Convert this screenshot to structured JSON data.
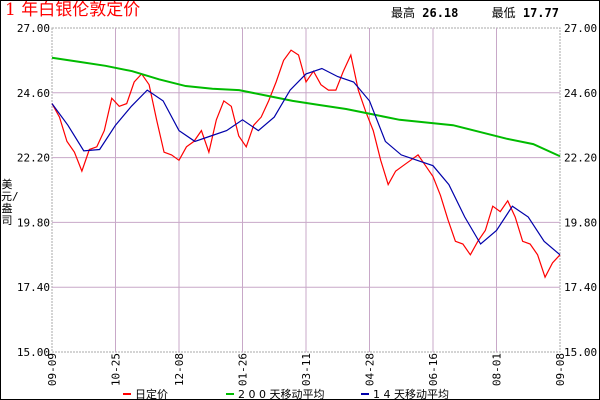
{
  "title": "1 年白银伦敦定价",
  "stats": {
    "high_label": "最高",
    "high": "26.18",
    "low_label": "最低",
    "low": "17.77"
  },
  "chart_data": {
    "type": "line",
    "title": "1 年白银伦敦定价",
    "ylabel": "美元/盎司",
    "ylim": [
      15.0,
      27.0
    ],
    "yticks": [
      "27.00",
      "24.60",
      "22.20",
      "19.80",
      "17.40",
      "15.00"
    ],
    "xticks": [
      "09-09",
      "10-25",
      "12-08",
      "01-26",
      "03-11",
      "04-28",
      "06-16",
      "08-01",
      "09-08"
    ],
    "grid": true,
    "legend_position": "bottom",
    "series": [
      {
        "name": "日定价",
        "color": "#ff0000",
        "values": [
          24.2,
          23.7,
          22.8,
          22.4,
          21.7,
          22.5,
          22.6,
          23.2,
          24.4,
          24.1,
          24.2,
          25.0,
          25.3,
          24.9,
          23.6,
          22.4,
          22.3,
          22.1,
          22.6,
          22.8,
          23.2,
          22.4,
          23.6,
          24.3,
          24.1,
          23.0,
          22.6,
          23.4,
          23.7,
          24.3,
          25.0,
          25.8,
          26.18,
          26.0,
          25.0,
          25.4,
          24.9,
          24.7,
          24.7,
          25.4,
          26.0,
          24.7,
          23.9,
          23.2,
          22.1,
          21.2,
          21.7,
          21.9,
          22.1,
          22.3,
          21.9,
          21.5,
          20.8,
          19.9,
          19.1,
          19.0,
          18.6,
          19.1,
          19.5,
          20.4,
          20.2,
          20.6,
          20.0,
          19.1,
          19.0,
          18.6,
          17.77,
          18.3,
          18.6
        ]
      },
      {
        "name": "2 0 0 天移动平均",
        "color": "#00bb00",
        "values": [
          25.9,
          25.75,
          25.6,
          25.4,
          25.1,
          24.85,
          24.75,
          24.7,
          24.5,
          24.3,
          24.15,
          24.0,
          23.8,
          23.6,
          23.5,
          23.4,
          23.15,
          22.9,
          22.7,
          22.25
        ]
      },
      {
        "name": "1 4 天移动平均",
        "color": "#0000aa",
        "values": [
          24.2,
          23.4,
          22.45,
          22.5,
          23.4,
          24.1,
          24.7,
          24.3,
          23.2,
          22.8,
          23.0,
          23.2,
          23.6,
          23.2,
          23.7,
          24.7,
          25.3,
          25.5,
          25.2,
          25.0,
          24.3,
          22.8,
          22.3,
          22.1,
          21.9,
          21.2,
          20.0,
          19.0,
          19.5,
          20.4,
          20.0,
          19.1,
          18.6
        ]
      }
    ]
  }
}
